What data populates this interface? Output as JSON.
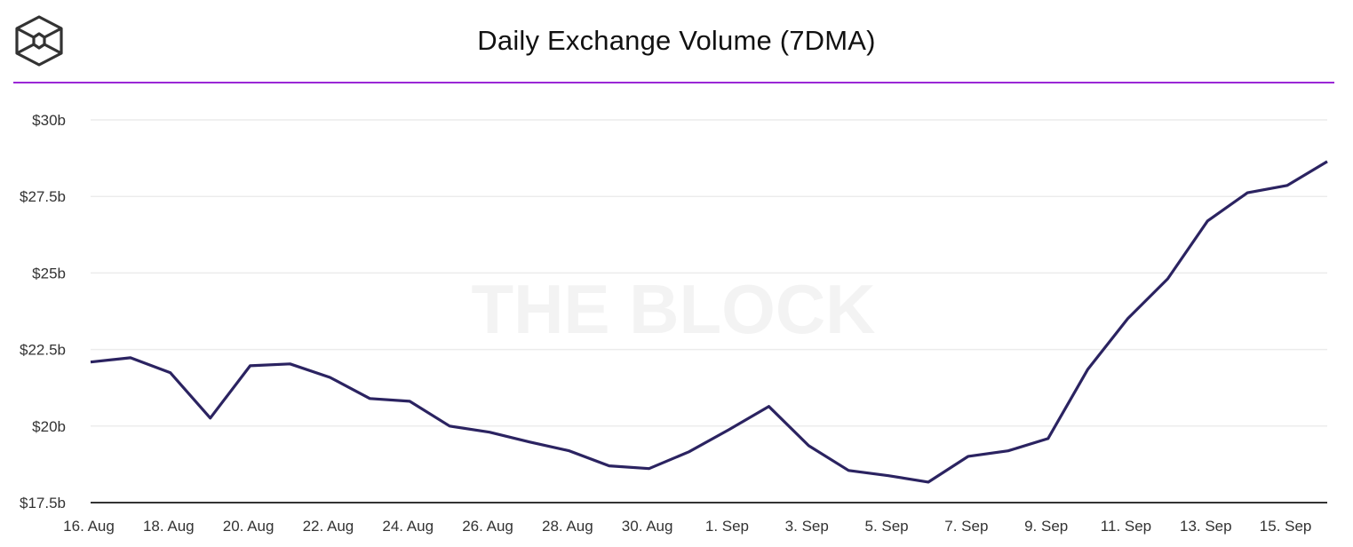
{
  "header": {
    "title": "Daily Exchange Volume (7DMA)",
    "logo_icon": "the-block-cube-logo-icon",
    "accent_color": "#9b27d6"
  },
  "watermark": "THE BLOCK",
  "chart_data": {
    "type": "line",
    "title": "Daily Exchange Volume (7DMA)",
    "xlabel": "",
    "ylabel": "",
    "ylim": [
      17.5,
      30
    ],
    "y_unit": "$ billions",
    "y_ticks": [
      {
        "value": 30,
        "label": "$30b"
      },
      {
        "value": 27.5,
        "label": "$27.5b"
      },
      {
        "value": 25,
        "label": "$25b"
      },
      {
        "value": 22.5,
        "label": "$22.5b"
      },
      {
        "value": 20,
        "label": "$20b"
      },
      {
        "value": 17.5,
        "label": "$17.5b"
      }
    ],
    "x_ticks": [
      {
        "index": 0,
        "label": "16. Aug"
      },
      {
        "index": 2,
        "label": "18. Aug"
      },
      {
        "index": 4,
        "label": "20. Aug"
      },
      {
        "index": 6,
        "label": "22. Aug"
      },
      {
        "index": 8,
        "label": "24. Aug"
      },
      {
        "index": 10,
        "label": "26. Aug"
      },
      {
        "index": 12,
        "label": "28. Aug"
      },
      {
        "index": 14,
        "label": "30. Aug"
      },
      {
        "index": 16,
        "label": "1. Sep"
      },
      {
        "index": 18,
        "label": "3. Sep"
      },
      {
        "index": 20,
        "label": "5. Sep"
      },
      {
        "index": 22,
        "label": "7. Sep"
      },
      {
        "index": 24,
        "label": "9. Sep"
      },
      {
        "index": 26,
        "label": "11. Sep"
      },
      {
        "index": 28,
        "label": "13. Sep"
      },
      {
        "index": 30,
        "label": "15. Sep"
      }
    ],
    "grid": true,
    "legend": "none",
    "x": [
      "16 Aug",
      "17 Aug",
      "18 Aug",
      "19 Aug",
      "20 Aug",
      "21 Aug",
      "22 Aug",
      "23 Aug",
      "24 Aug",
      "25 Aug",
      "26 Aug",
      "27 Aug",
      "28 Aug",
      "29 Aug",
      "30 Aug",
      "31 Aug",
      "1 Sep",
      "2 Sep",
      "3 Sep",
      "4 Sep",
      "5 Sep",
      "6 Sep",
      "7 Sep",
      "8 Sep",
      "9 Sep",
      "10 Sep",
      "11 Sep",
      "12 Sep",
      "13 Sep",
      "14 Sep",
      "15 Sep",
      "16 Sep"
    ],
    "series": [
      {
        "name": "Daily Exchange Volume (7DMA)",
        "color": "#2b2361",
        "values": [
          22.09,
          22.23,
          21.74,
          20.26,
          21.97,
          22.03,
          21.59,
          20.9,
          20.81,
          20.0,
          19.8,
          19.48,
          19.19,
          18.7,
          18.61,
          19.16,
          19.88,
          20.64,
          19.36,
          18.55,
          18.38,
          18.17,
          19.01,
          19.19,
          19.59,
          21.86,
          23.51,
          24.81,
          26.7,
          27.62,
          27.86,
          28.64
        ]
      }
    ]
  }
}
